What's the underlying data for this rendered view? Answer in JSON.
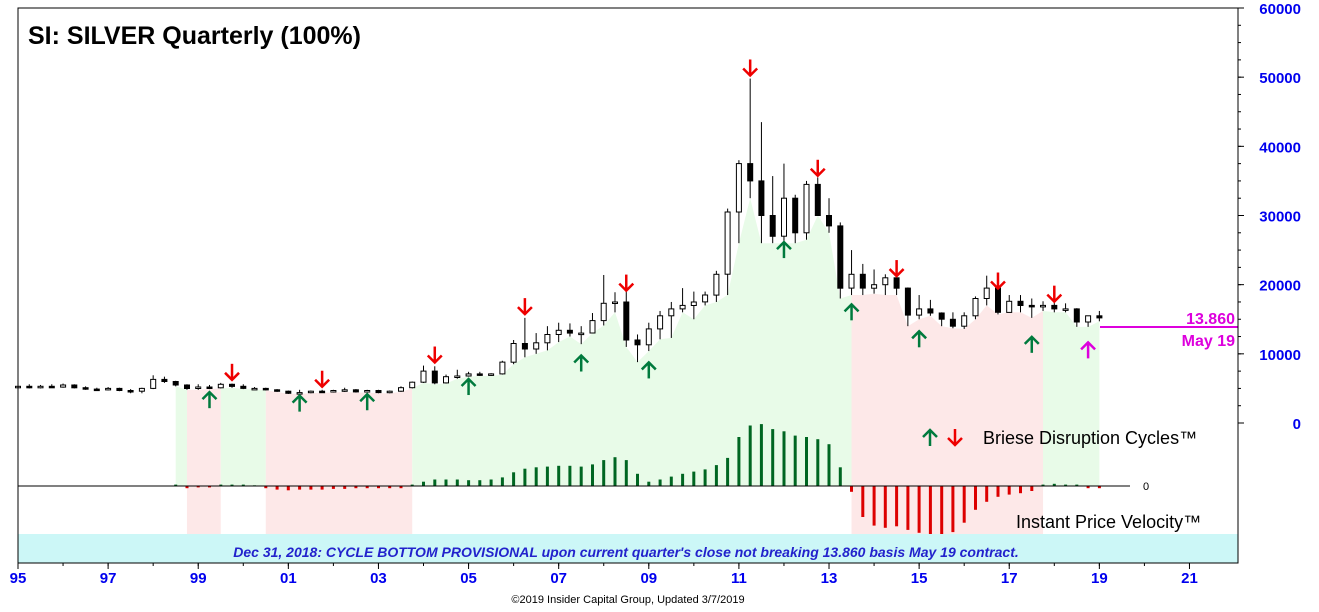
{
  "chart_data": {
    "type": "candlestick",
    "title": "SI: SILVER Quarterly (100%)",
    "x_ticks": [
      "95",
      "97",
      "99",
      "01",
      "03",
      "05",
      "07",
      "09",
      "11",
      "13",
      "15",
      "17",
      "19",
      "21"
    ],
    "y_ticks": [
      "60000",
      "50000",
      "40000",
      "30000",
      "20000",
      "10000",
      "0"
    ],
    "ylim": [
      0,
      60000
    ],
    "xlim": [
      1995,
      2021.5
    ],
    "price_annotation": {
      "value_label": "13.860",
      "contract_label": "May 19",
      "value": 13860
    },
    "legend_cycles": "Briese Disruption Cycles™",
    "legend_velocity": "Instant Price Velocity™",
    "velocity_zero_label": "0",
    "banner": "Dec 31, 2018: CYCLE BOTTOM PROVISIONAL upon current quarter's close not breaking 13.860 basis May 19 contract.",
    "footer": "©2019 Insider Capital Group, Updated 3/7/2019",
    "colors": {
      "axis_text": "#0000ee",
      "up_arrow": "#007a3d",
      "down_arrow": "#ee0000",
      "green_zone": "#e8fbe8",
      "pink_zone": "#fde8e8",
      "banner_bg": "#ccf7f7",
      "banner_text": "#2222cc",
      "annotation": "#dd00dd",
      "velocity_pos": "#006622",
      "velocity_neg": "#dd0000"
    },
    "zones": [
      {
        "from": 1998.5,
        "to": 1998.75,
        "kind": "green"
      },
      {
        "from": 1998.75,
        "to": 1999.5,
        "kind": "pink"
      },
      {
        "from": 1999.5,
        "to": 2000.5,
        "kind": "green"
      },
      {
        "from": 2000.5,
        "to": 2003.75,
        "kind": "pink"
      },
      {
        "from": 2003.75,
        "to": 2013.5,
        "kind": "green"
      },
      {
        "from": 2013.5,
        "to": 2017.75,
        "kind": "pink"
      },
      {
        "from": 2017.75,
        "to": 2019.0,
        "kind": "green"
      }
    ],
    "candles": [
      [
        1995.0,
        5200,
        5500,
        4800,
        5300
      ],
      [
        1995.25,
        5300,
        5600,
        5000,
        5200
      ],
      [
        1995.5,
        5200,
        5500,
        5000,
        5300
      ],
      [
        1995.75,
        5300,
        5600,
        5100,
        5200
      ],
      [
        1996.0,
        5200,
        5700,
        5100,
        5500
      ],
      [
        1996.25,
        5500,
        5600,
        5000,
        5100
      ],
      [
        1996.5,
        5100,
        5300,
        4800,
        4900
      ],
      [
        1996.75,
        4900,
        5100,
        4700,
        4800
      ],
      [
        1997.0,
        4800,
        5200,
        4700,
        5000
      ],
      [
        1997.25,
        5000,
        5100,
        4600,
        4700
      ],
      [
        1997.5,
        4700,
        4900,
        4300,
        4600
      ],
      [
        1997.75,
        4600,
        5100,
        4300,
        5000
      ],
      [
        1998.0,
        5000,
        6900,
        4900,
        6300
      ],
      [
        1998.25,
        6300,
        6700,
        5800,
        6000
      ],
      [
        1998.5,
        6000,
        6100,
        5300,
        5500
      ],
      [
        1998.75,
        5500,
        5600,
        4800,
        5000
      ],
      [
        1999.0,
        5000,
        5600,
        4800,
        5200
      ],
      [
        1999.25,
        5200,
        5500,
        4900,
        5100
      ],
      [
        1999.5,
        5100,
        5800,
        5000,
        5600
      ],
      [
        1999.75,
        5600,
        5700,
        5100,
        5300
      ],
      [
        2000.0,
        5300,
        5600,
        4900,
        5000
      ],
      [
        2000.25,
        5000,
        5200,
        4900,
        5000
      ],
      [
        2000.5,
        5000,
        5100,
        4700,
        4800
      ],
      [
        2000.75,
        4800,
        4900,
        4500,
        4600
      ],
      [
        2001.0,
        4600,
        4700,
        4200,
        4300
      ],
      [
        2001.25,
        4300,
        4800,
        4200,
        4400
      ],
      [
        2001.5,
        4400,
        4700,
        4300,
        4600
      ],
      [
        2001.75,
        4600,
        4800,
        4400,
        4500
      ],
      [
        2002.0,
        4500,
        4800,
        4400,
        4700
      ],
      [
        2002.25,
        4700,
        5100,
        4500,
        4800
      ],
      [
        2002.5,
        4800,
        4900,
        4400,
        4500
      ],
      [
        2002.75,
        4500,
        4800,
        4400,
        4700
      ],
      [
        2003.0,
        4700,
        4800,
        4300,
        4400
      ],
      [
        2003.25,
        4400,
        4700,
        4300,
        4600
      ],
      [
        2003.5,
        4600,
        5300,
        4500,
        5100
      ],
      [
        2003.75,
        5100,
        6000,
        5000,
        5900
      ],
      [
        2004.0,
        5900,
        8300,
        5800,
        7500
      ],
      [
        2004.25,
        7500,
        8200,
        5600,
        5800
      ],
      [
        2004.5,
        5800,
        7000,
        5700,
        6700
      ],
      [
        2004.75,
        6700,
        7700,
        6400,
        6800
      ],
      [
        2005.0,
        6800,
        7400,
        6700,
        7100
      ],
      [
        2005.25,
        7100,
        7400,
        6800,
        7000
      ],
      [
        2005.5,
        7000,
        7200,
        6800,
        7100
      ],
      [
        2005.75,
        7100,
        9000,
        7000,
        8800
      ],
      [
        2006.0,
        8800,
        12000,
        8500,
        11500
      ],
      [
        2006.25,
        11500,
        15200,
        9500,
        10700
      ],
      [
        2006.5,
        10700,
        13000,
        10000,
        11600
      ],
      [
        2006.75,
        11600,
        14000,
        10500,
        12800
      ],
      [
        2007.0,
        12800,
        14500,
        11700,
        13400
      ],
      [
        2007.25,
        13400,
        14400,
        12500,
        13000
      ],
      [
        2007.5,
        13000,
        14000,
        11400,
        13000
      ],
      [
        2007.75,
        13000,
        15900,
        13000,
        14800
      ],
      [
        2008.0,
        14800,
        21400,
        14100,
        17300
      ],
      [
        2008.25,
        17300,
        18900,
        16000,
        17500
      ],
      [
        2008.5,
        17500,
        19500,
        11000,
        12000
      ],
      [
        2008.75,
        12000,
        12800,
        8800,
        11300
      ],
      [
        2009.0,
        11300,
        14500,
        10400,
        13600
      ],
      [
        2009.25,
        13600,
        16200,
        12100,
        15500
      ],
      [
        2009.5,
        15500,
        17500,
        12300,
        16500
      ],
      [
        2009.75,
        16500,
        19500,
        16000,
        17000
      ],
      [
        2010.0,
        17000,
        19000,
        15000,
        17500
      ],
      [
        2010.25,
        17500,
        19000,
        17000,
        18500
      ],
      [
        2010.5,
        18500,
        22000,
        17500,
        21500
      ],
      [
        2010.75,
        21500,
        31000,
        18500,
        30500
      ],
      [
        2011.0,
        30500,
        38000,
        26000,
        37500
      ],
      [
        2011.25,
        37500,
        49800,
        32500,
        35000
      ],
      [
        2011.5,
        35000,
        43500,
        26000,
        30000
      ],
      [
        2011.75,
        30000,
        35700,
        26000,
        27000
      ],
      [
        2012.0,
        27000,
        37500,
        26000,
        32500
      ],
      [
        2012.25,
        32500,
        33000,
        26000,
        27500
      ],
      [
        2012.5,
        27500,
        35000,
        26500,
        34500
      ],
      [
        2012.75,
        34500,
        35500,
        30000,
        30000
      ],
      [
        2013.0,
        30000,
        32500,
        27500,
        28500
      ],
      [
        2013.25,
        28500,
        29000,
        18000,
        19500
      ],
      [
        2013.5,
        19500,
        25000,
        18500,
        21500
      ],
      [
        2013.75,
        21500,
        23000,
        18500,
        19500
      ],
      [
        2014.0,
        19500,
        22200,
        18700,
        20000
      ],
      [
        2014.25,
        20000,
        21500,
        18500,
        21000
      ],
      [
        2014.5,
        21000,
        21500,
        18500,
        19500
      ],
      [
        2014.75,
        19500,
        19600,
        14000,
        15600
      ],
      [
        2015.0,
        15600,
        18500,
        15000,
        16500
      ],
      [
        2015.25,
        16500,
        17800,
        15500,
        15900
      ],
      [
        2015.5,
        15900,
        16000,
        14000,
        15000
      ],
      [
        2015.75,
        15000,
        16000,
        13700,
        14000
      ],
      [
        2016.0,
        14000,
        16000,
        13600,
        15500
      ],
      [
        2016.25,
        15500,
        18300,
        15000,
        18000
      ],
      [
        2016.5,
        18000,
        21300,
        17000,
        19500
      ],
      [
        2016.75,
        19500,
        20000,
        15700,
        16000
      ],
      [
        2017.0,
        16000,
        18500,
        16000,
        17600
      ],
      [
        2017.25,
        17600,
        18500,
        16000,
        17000
      ],
      [
        2017.5,
        17000,
        18000,
        15200,
        16800
      ],
      [
        2017.75,
        16800,
        17600,
        16200,
        17000
      ],
      [
        2018.0,
        17000,
        17700,
        16000,
        16500
      ],
      [
        2018.25,
        16500,
        17300,
        16000,
        16500
      ],
      [
        2018.5,
        16500,
        16600,
        13900,
        14600
      ],
      [
        2018.75,
        14600,
        14900,
        13900,
        15500
      ],
      [
        2019.0,
        15500,
        16200,
        14700,
        15200
      ]
    ],
    "cycle_arrows": [
      {
        "dir": "up",
        "x": 1999.25,
        "value": 3300
      },
      {
        "dir": "down",
        "x": 1999.75,
        "value": 7400
      },
      {
        "dir": "up",
        "x": 2001.25,
        "value": 2800
      },
      {
        "dir": "down",
        "x": 2001.75,
        "value": 6400
      },
      {
        "dir": "up",
        "x": 2002.75,
        "value": 3000
      },
      {
        "dir": "down",
        "x": 2004.25,
        "value": 9900
      },
      {
        "dir": "up",
        "x": 2005.0,
        "value": 5200
      },
      {
        "dir": "down",
        "x": 2006.25,
        "value": 16900
      },
      {
        "dir": "up",
        "x": 2007.5,
        "value": 8600
      },
      {
        "dir": "down",
        "x": 2008.5,
        "value": 20300
      },
      {
        "dir": "up",
        "x": 2009.0,
        "value": 7600
      },
      {
        "dir": "down",
        "x": 2011.25,
        "value": 51400
      },
      {
        "dir": "up",
        "x": 2012.0,
        "value": 25000
      },
      {
        "dir": "down",
        "x": 2012.75,
        "value": 36900
      },
      {
        "dir": "up",
        "x": 2013.5,
        "value": 16000
      },
      {
        "dir": "down",
        "x": 2014.5,
        "value": 22400
      },
      {
        "dir": "up",
        "x": 2015.0,
        "value": 12100
      },
      {
        "dir": "down",
        "x": 2016.75,
        "value": 20600
      },
      {
        "dir": "up",
        "x": 2017.5,
        "value": 11300
      },
      {
        "dir": "down",
        "x": 2018.0,
        "value": 18700
      },
      {
        "dir": "up-magenta",
        "x": 2018.75,
        "value": 10500
      }
    ],
    "velocity": {
      "ylim": [
        -8,
        10
      ],
      "bars": [
        [
          1998.5,
          0.2
        ],
        [
          1998.75,
          -0.3
        ],
        [
          1999.0,
          -0.2
        ],
        [
          1999.25,
          -0.2
        ],
        [
          1999.5,
          0.2
        ],
        [
          1999.75,
          0.2
        ],
        [
          2000.0,
          0.2
        ],
        [
          2000.25,
          0.1
        ],
        [
          2000.5,
          -0.3
        ],
        [
          2000.75,
          -0.5
        ],
        [
          2001.0,
          -0.6
        ],
        [
          2001.25,
          -0.5
        ],
        [
          2001.5,
          -0.5
        ],
        [
          2001.75,
          -0.5
        ],
        [
          2002.0,
          -0.4
        ],
        [
          2002.25,
          -0.4
        ],
        [
          2002.5,
          -0.3
        ],
        [
          2002.75,
          -0.3
        ],
        [
          2003.0,
          -0.3
        ],
        [
          2003.25,
          -0.3
        ],
        [
          2003.5,
          -0.3
        ],
        [
          2003.75,
          0.2
        ],
        [
          2004.0,
          0.6
        ],
        [
          2004.25,
          0.9
        ],
        [
          2004.5,
          0.9
        ],
        [
          2004.75,
          0.9
        ],
        [
          2005.0,
          0.8
        ],
        [
          2005.25,
          0.8
        ],
        [
          2005.5,
          0.9
        ],
        [
          2005.75,
          1.2
        ],
        [
          2006.0,
          1.9
        ],
        [
          2006.25,
          2.4
        ],
        [
          2006.5,
          2.6
        ],
        [
          2006.75,
          2.7
        ],
        [
          2007.0,
          2.8
        ],
        [
          2007.25,
          2.8
        ],
        [
          2007.5,
          2.7
        ],
        [
          2007.75,
          3.0
        ],
        [
          2008.0,
          3.6
        ],
        [
          2008.25,
          4.0
        ],
        [
          2008.5,
          3.6
        ],
        [
          2008.75,
          1.7
        ],
        [
          2009.0,
          0.6
        ],
        [
          2009.25,
          0.9
        ],
        [
          2009.5,
          1.3
        ],
        [
          2009.75,
          1.7
        ],
        [
          2010.0,
          2.0
        ],
        [
          2010.25,
          2.3
        ],
        [
          2010.5,
          2.9
        ],
        [
          2010.75,
          3.9
        ],
        [
          2011.0,
          6.8
        ],
        [
          2011.25,
          8.4
        ],
        [
          2011.5,
          8.6
        ],
        [
          2011.75,
          7.9
        ],
        [
          2012.0,
          7.6
        ],
        [
          2012.25,
          7.0
        ],
        [
          2012.5,
          6.8
        ],
        [
          2012.75,
          6.5
        ],
        [
          2013.0,
          5.8
        ],
        [
          2013.25,
          2.6
        ],
        [
          2013.5,
          -0.8
        ],
        [
          2013.75,
          -4.3
        ],
        [
          2014.0,
          -5.5
        ],
        [
          2014.25,
          -5.8
        ],
        [
          2014.5,
          -5.6
        ],
        [
          2014.75,
          -6.1
        ],
        [
          2015.0,
          -6.5
        ],
        [
          2015.25,
          -6.8
        ],
        [
          2015.5,
          -6.9
        ],
        [
          2015.75,
          -6.4
        ],
        [
          2016.0,
          -5.1
        ],
        [
          2016.25,
          -3.3
        ],
        [
          2016.5,
          -2.2
        ],
        [
          2016.75,
          -1.5
        ],
        [
          2017.0,
          -1.2
        ],
        [
          2017.25,
          -1.0
        ],
        [
          2017.5,
          -0.7
        ],
        [
          2017.75,
          0.2
        ],
        [
          2018.0,
          0.3
        ],
        [
          2018.25,
          0.2
        ],
        [
          2018.5,
          0.2
        ],
        [
          2018.75,
          -0.3
        ],
        [
          2019.0,
          -0.3
        ]
      ]
    }
  }
}
